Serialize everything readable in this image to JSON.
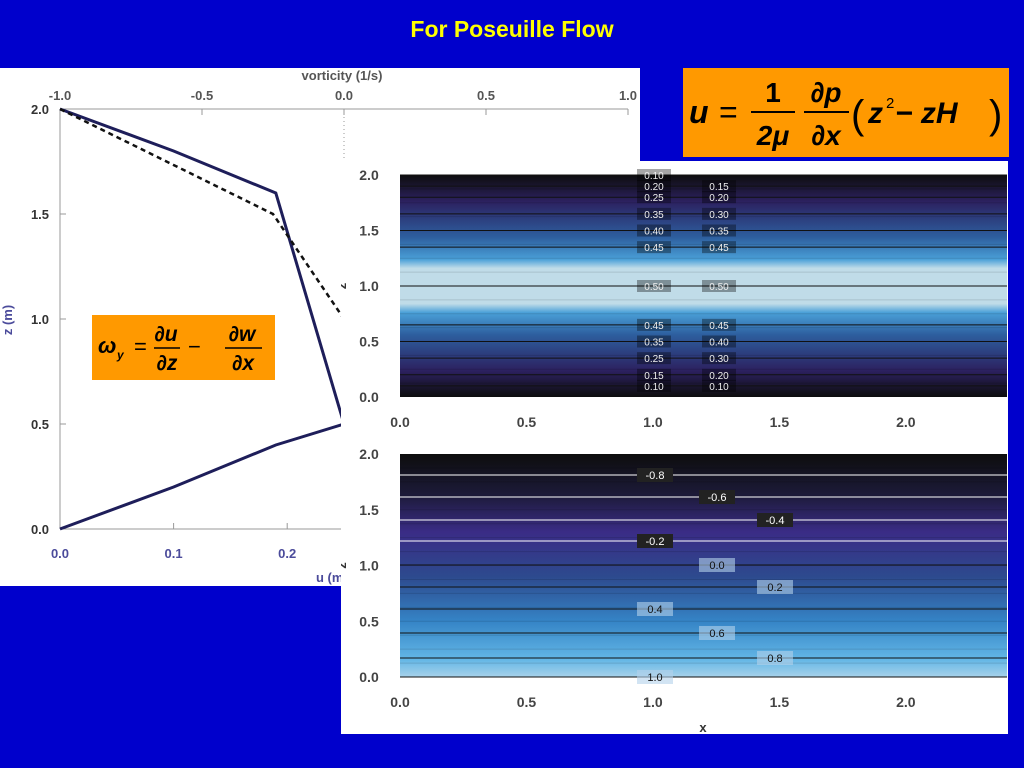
{
  "title": "For Poseuille Flow",
  "equations": {
    "velocity": {
      "lhs": "u",
      "eq": "=",
      "frac1_num": "1",
      "frac1_den": "2μ",
      "frac2_num": "∂p",
      "frac2_den": "∂x",
      "rest": "z",
      "exp": "2",
      "tail": " − zH"
    },
    "vorticity": {
      "lhs": "ω",
      "sub": "y",
      "eq": "=",
      "f1_num": "∂u",
      "f1_den": "∂z",
      "minus": "−",
      "f2_num": "∂w",
      "f2_den": "∂x"
    }
  },
  "colors": {
    "background": "#0000cc",
    "title": "#ffff00",
    "equation_box": "#ff9900",
    "profile_line": "#1e1e5a",
    "axis_purple": "#4b4b9b"
  },
  "chart_data": [
    {
      "type": "line",
      "top_axis_label": "vorticity (1/s)",
      "top_ticks": [
        "-1.0",
        "-0.5",
        "0.0",
        "0.5",
        "1.0"
      ],
      "top_range": [
        -1.0,
        1.0
      ],
      "bottom_axis_label": "u (m",
      "bottom_ticks": [
        "0.0",
        "0.1",
        "0.2"
      ],
      "bottom_range": [
        0.0,
        0.5
      ],
      "ylabel": "z (m)",
      "y_ticks": [
        "0.0",
        "0.5",
        "1.0",
        "1.5",
        "2.0"
      ],
      "y_range": [
        0.0,
        2.0
      ],
      "series": [
        {
          "style": "solid",
          "axis": "bottom",
          "points": [
            [
              0.0,
              0.0
            ],
            [
              0.1,
              0.2
            ],
            [
              0.19,
              0.4
            ],
            [
              0.25,
              0.5
            ],
            [
              0.19,
              1.6
            ],
            [
              0.1,
              1.8
            ],
            [
              0.0,
              2.0
            ]
          ]
        },
        {
          "style": "dashed",
          "axis": "top",
          "points": [
            [
              -1.0,
              2.0
            ],
            [
              -0.25,
              1.5
            ],
            [
              0.0,
              1.0
            ]
          ]
        }
      ]
    },
    {
      "type": "heatmap",
      "ylabel": "z",
      "x_ticks": [
        "0.0",
        "0.5",
        "1.0",
        "1.5",
        "2.0"
      ],
      "y_ticks": [
        "0.0",
        "0.5",
        "1.0",
        "1.5",
        "2.0"
      ],
      "x_range": [
        0.0,
        2.4
      ],
      "y_range": [
        0.0,
        2.0
      ],
      "field": "u",
      "contours": [
        {
          "z": 0.1,
          "labels": [
            "0.10",
            "0.10"
          ]
        },
        {
          "z": 0.2,
          "labels": [
            "0.15",
            "0.20"
          ]
        },
        {
          "z": 0.35,
          "labels": [
            "0.25",
            "0.30"
          ]
        },
        {
          "z": 0.5,
          "labels": [
            "0.35",
            "0.40"
          ]
        },
        {
          "z": 0.65,
          "labels": [
            "0.45",
            "0.45"
          ]
        },
        {
          "z": 1.0,
          "labels": [
            "0.50",
            "0.50"
          ]
        },
        {
          "z": 1.35,
          "labels": [
            "0.45",
            "0.45"
          ]
        },
        {
          "z": 1.5,
          "labels": [
            "0.40",
            "0.35"
          ]
        },
        {
          "z": 1.65,
          "labels": [
            "0.35",
            "0.30"
          ]
        },
        {
          "z": 1.8,
          "labels": [
            "0.25",
            "0.20"
          ]
        },
        {
          "z": 1.9,
          "labels": [
            "0.20",
            "0.15"
          ]
        },
        {
          "z": 2.0,
          "labels": [
            "0.10",
            ""
          ]
        }
      ]
    },
    {
      "type": "heatmap",
      "xlabel": "x",
      "ylabel": "z",
      "x_ticks": [
        "0.0",
        "0.5",
        "1.0",
        "1.5",
        "2.0"
      ],
      "y_ticks": [
        "0.0",
        "0.5",
        "1.0",
        "1.5",
        "2.0"
      ],
      "x_range": [
        0.0,
        2.4
      ],
      "y_range": [
        0.0,
        2.0
      ],
      "field": "vorticity",
      "contours": [
        {
          "z": 0.0,
          "label": "1.0"
        },
        {
          "z": 0.15,
          "label": "0.8"
        },
        {
          "z": 0.6,
          "label": "0.6"
        },
        {
          "z": 0.6,
          "label": "0.4"
        },
        {
          "z": 0.8,
          "label": "0.2"
        },
        {
          "z": 1.0,
          "label": "0.0"
        },
        {
          "z": 1.2,
          "label": "-0.2"
        },
        {
          "z": 1.4,
          "label": "-0.4"
        },
        {
          "z": 1.6,
          "label": "-0.6"
        },
        {
          "z": 1.8,
          "label": "-0.8"
        }
      ]
    }
  ]
}
